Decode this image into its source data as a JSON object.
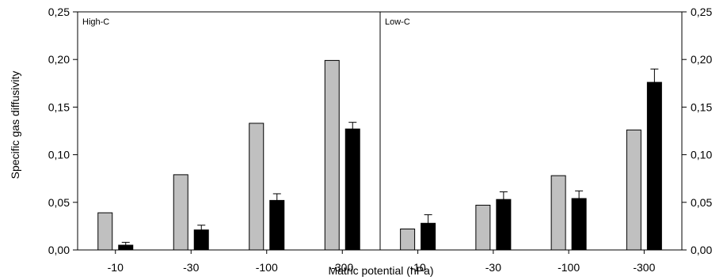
{
  "chart_data": {
    "type": "bar",
    "xlabel": "Matric potential (hPa)",
    "ylabel": "Specific gas diffusivity",
    "ylim": [
      0,
      0.25
    ],
    "yticks": [
      "0,00",
      "0,05",
      "0,10",
      "0,15",
      "0,20",
      "0,25"
    ],
    "categories": [
      "-10",
      "-30",
      "-100",
      "-300"
    ],
    "colors": {
      "series_a": "#c0c0c0",
      "series_b": "#000000"
    },
    "panels": [
      {
        "label": "High-C",
        "series": [
          {
            "values": [
              0.039,
              0.079,
              0.133,
              0.199
            ],
            "errors": [
              0,
              0,
              0,
              0
            ]
          },
          {
            "values": [
              0.005,
              0.021,
              0.052,
              0.127
            ],
            "errors": [
              0.003,
              0.005,
              0.007,
              0.007
            ]
          }
        ]
      },
      {
        "label": "Low-C",
        "series": [
          {
            "values": [
              0.022,
              0.047,
              0.078,
              0.126
            ],
            "errors": [
              0,
              0,
              0,
              0
            ]
          },
          {
            "values": [
              0.028,
              0.053,
              0.054,
              0.176
            ],
            "errors": [
              0.009,
              0.008,
              0.008,
              0.014
            ]
          }
        ]
      }
    ]
  }
}
